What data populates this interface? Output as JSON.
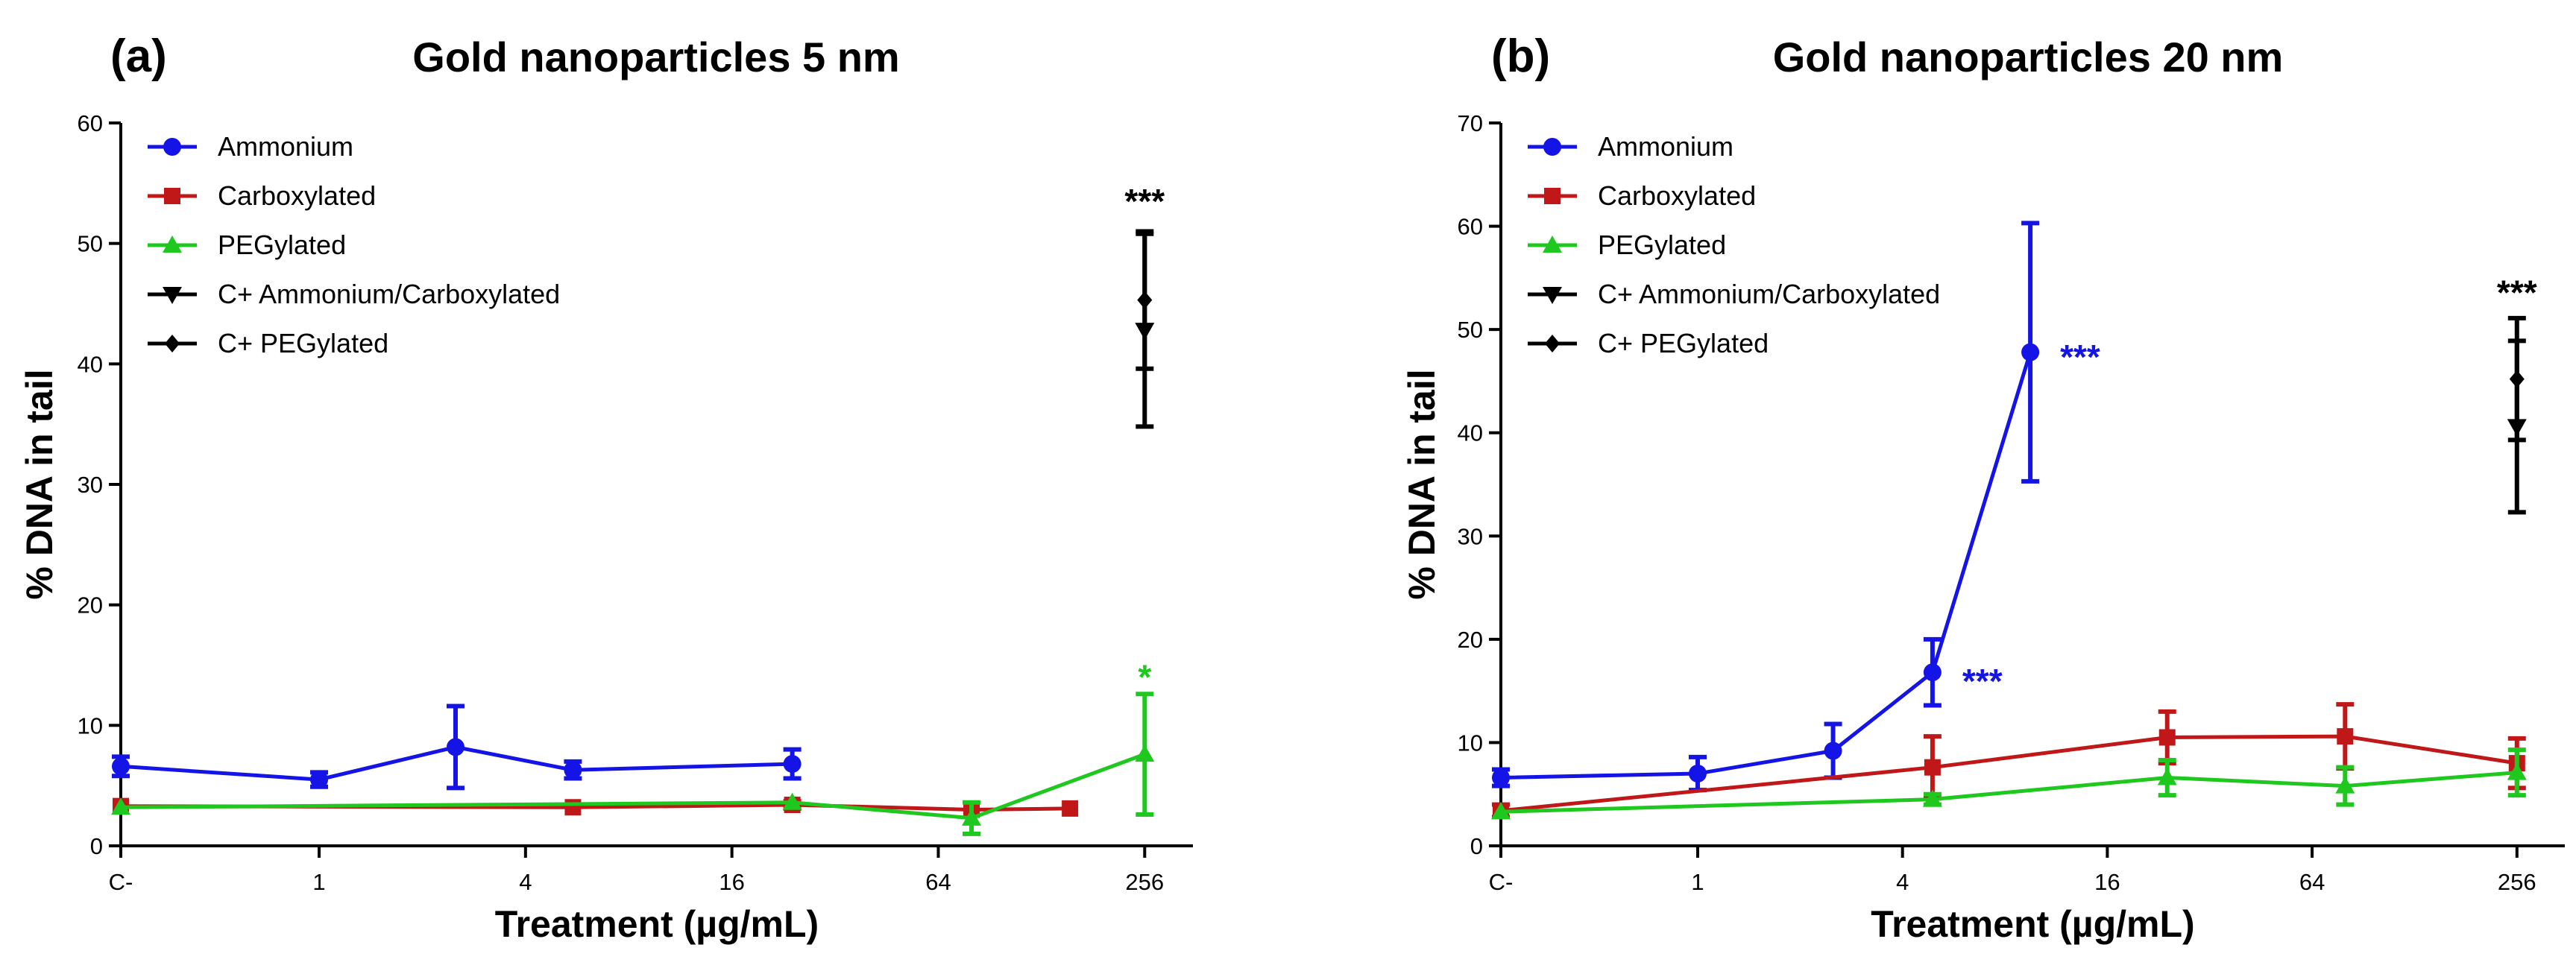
{
  "figure": {
    "colors": {
      "Ammonium": "#1414e6",
      "Carboxylated": "#c01818",
      "PEGylated": "#1ec81e",
      "C+ Ammonium/Carboxylated": "#000000",
      "C+ PEGylated": "#000000"
    },
    "markers": {
      "Ammonium": "circle",
      "Carboxylated": "square",
      "PEGylated": "triangle-up",
      "C+ Ammonium/Carboxylated": "triangle-down",
      "C+ PEGylated": "diamond"
    }
  },
  "chart_data": [
    {
      "type": "line",
      "panel_label": "(a)",
      "title": "Gold nanoparticles 5 nm",
      "xlabel": "Treatment (µg/mL)",
      "ylabel": "% DNA in tail",
      "x_scale": "log2 with control category",
      "x_ticks": [
        {
          "label": "C-",
          "x": 0
        },
        {
          "label": "1",
          "x": 1
        },
        {
          "label": "4",
          "x": 4
        },
        {
          "label": "16",
          "x": 16
        },
        {
          "label": "64",
          "x": 64
        },
        {
          "label": "256",
          "x": 256
        }
      ],
      "ylim": [
        0,
        60
      ],
      "y_ticks": [
        0,
        10,
        20,
        30,
        40,
        50,
        60
      ],
      "legend": [
        "Ammonium",
        "Carboxylated",
        "PEGylated",
        "C+ Ammonium/Carboxylated",
        "C+ PEGylated"
      ],
      "legend_position": "top-left",
      "series": [
        {
          "name": "Ammonium",
          "points": [
            {
              "x": 0,
              "y": 6.6,
              "err": 0.8
            },
            {
              "x": 1,
              "y": 5.5,
              "err": 0.6
            },
            {
              "x": 2.5,
              "y": 8.2,
              "err": 3.4
            },
            {
              "x": 5.5,
              "y": 6.3,
              "err": 0.7
            },
            {
              "x": 24,
              "y": 6.8,
              "err": 1.2
            }
          ]
        },
        {
          "name": "Carboxylated",
          "points": [
            {
              "x": 0,
              "y": 3.3,
              "err": 0
            },
            {
              "x": 5.5,
              "y": 3.2,
              "err": 0
            },
            {
              "x": 24,
              "y": 3.4,
              "err": 0.3
            },
            {
              "x": 80,
              "y": 3.0,
              "err": 0
            },
            {
              "x": 155,
              "y": 3.1,
              "err": 0
            }
          ]
        },
        {
          "name": "PEGylated",
          "points": [
            {
              "x": 0,
              "y": 3.2,
              "err": 0
            },
            {
              "x": 24,
              "y": 3.6,
              "err": 0
            },
            {
              "x": 80,
              "y": 2.3,
              "err": 1.3
            },
            {
              "x": 256,
              "y": 7.6,
              "err": 5.0
            }
          ]
        },
        {
          "name": "C+ Ammonium/Carboxylated",
          "points": [
            {
              "x": 256,
              "y": 42.8,
              "err": 8.0
            }
          ]
        },
        {
          "name": "C+ PEGylated",
          "points": [
            {
              "x": 256,
              "y": 45.3,
              "err": 5.7
            }
          ]
        }
      ],
      "annotations": [
        {
          "text": "***",
          "x": 256,
          "y": 53.5,
          "series": "C+ Ammonium/Carboxylated"
        },
        {
          "text": "*",
          "x": 256,
          "y": 14.0,
          "series": "PEGylated"
        }
      ]
    },
    {
      "type": "line",
      "panel_label": "(b)",
      "title": "Gold nanoparticles 20 nm",
      "xlabel": "Treatment (µg/mL)",
      "ylabel": "% DNA in tail",
      "x_scale": "log2 with control category",
      "x_ticks": [
        {
          "label": "C-",
          "x": 0
        },
        {
          "label": "1",
          "x": 1
        },
        {
          "label": "4",
          "x": 4
        },
        {
          "label": "16",
          "x": 16
        },
        {
          "label": "64",
          "x": 64
        },
        {
          "label": "256",
          "x": 256
        }
      ],
      "ylim": [
        0,
        70
      ],
      "y_ticks": [
        0,
        10,
        20,
        30,
        40,
        50,
        60,
        70
      ],
      "legend": [
        "Ammonium",
        "Carboxylated",
        "PEGylated",
        "C+ Ammonium/Carboxylated",
        "C+ PEGylated"
      ],
      "legend_position": "top-left",
      "series": [
        {
          "name": "Ammonium",
          "points": [
            {
              "x": 0,
              "y": 6.6,
              "err": 0.8
            },
            {
              "x": 1,
              "y": 7.0,
              "err": 1.6
            },
            {
              "x": 2.5,
              "y": 9.2,
              "err": 2.6
            },
            {
              "x": 4.9,
              "y": 16.8,
              "err": 3.2
            },
            {
              "x": 9.5,
              "y": 47.8,
              "err": 12.5
            }
          ]
        },
        {
          "name": "Carboxylated",
          "points": [
            {
              "x": 0,
              "y": 3.4,
              "err": 0.6
            },
            {
              "x": 4.9,
              "y": 7.6,
              "err": 3.0
            },
            {
              "x": 24,
              "y": 10.5,
              "err": 2.5
            },
            {
              "x": 80,
              "y": 10.6,
              "err": 3.1
            },
            {
              "x": 256,
              "y": 8.0,
              "err": 2.4
            }
          ]
        },
        {
          "name": "PEGylated",
          "points": [
            {
              "x": 0,
              "y": 3.3,
              "err": 0
            },
            {
              "x": 4.9,
              "y": 4.5,
              "err": 0.5
            },
            {
              "x": 24,
              "y": 6.6,
              "err": 1.7
            },
            {
              "x": 80,
              "y": 5.8,
              "err": 1.8
            },
            {
              "x": 256,
              "y": 7.1,
              "err": 2.2
            }
          ]
        },
        {
          "name": "C+ Ammonium/Carboxylated",
          "points": [
            {
              "x": 256,
              "y": 40.6,
              "err": 8.3
            }
          ]
        },
        {
          "name": "C+ PEGylated",
          "points": [
            {
              "x": 256,
              "y": 45.2,
              "err": 5.9
            }
          ]
        }
      ],
      "annotations": [
        {
          "text": "***",
          "x": 256,
          "y": 53.6,
          "series": "C+ Ammonium/Carboxylated"
        },
        {
          "text": "***",
          "x": 9.5,
          "y": 47.2,
          "series": "Ammonium",
          "side": "right"
        },
        {
          "text": "***",
          "x": 4.9,
          "y": 15.8,
          "series": "Ammonium",
          "side": "right"
        }
      ]
    }
  ]
}
